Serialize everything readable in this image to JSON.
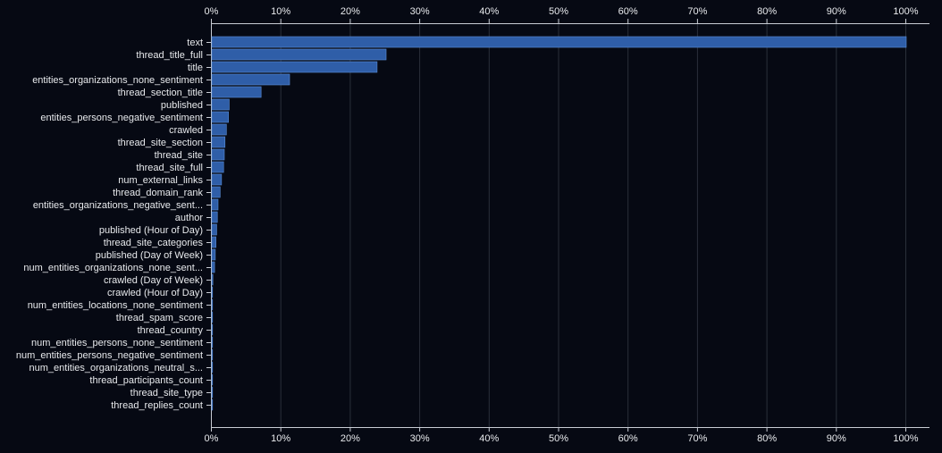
{
  "colors": {
    "background": "#060913",
    "bar": "#2f5ea8",
    "grid": "#2a2f3a",
    "text": "#e8eaed"
  },
  "chart_data": {
    "type": "bar",
    "orientation": "horizontal",
    "categories": [
      "text",
      "thread_title_full",
      "title",
      "entities_organizations_none_sentiment",
      "thread_section_title",
      "published",
      "entities_persons_negative_sentiment",
      "crawled",
      "thread_site_section",
      "thread_site",
      "thread_site_full",
      "num_external_links",
      "thread_domain_rank",
      "entities_organizations_negative_sent...",
      "author",
      "published (Hour of Day)",
      "thread_site_categories",
      "published (Day of Week)",
      "num_entities_organizations_none_sent...",
      "crawled (Day of Week)",
      "crawled (Hour of Day)",
      "num_entities_locations_none_sentiment",
      "thread_spam_score",
      "thread_country",
      "num_entities_persons_none_sentiment",
      "num_entities_persons_negative_sentiment",
      "num_entities_organizations_neutral_s...",
      "thread_participants_count",
      "thread_site_type",
      "thread_replies_count"
    ],
    "values": [
      100,
      25.1,
      23.8,
      11.2,
      7.1,
      2.5,
      2.4,
      2.1,
      1.9,
      1.8,
      1.7,
      1.4,
      1.2,
      0.9,
      0.8,
      0.7,
      0.6,
      0.5,
      0.4,
      0.15,
      0.1,
      0.05,
      0.04,
      0.03,
      0.02,
      0.02,
      0.01,
      0.01,
      0.01,
      0.01
    ],
    "xlim": [
      0,
      100
    ],
    "x_ticks": [
      "0%",
      "10%",
      "20%",
      "30%",
      "40%",
      "50%",
      "60%",
      "70%",
      "80%",
      "90%",
      "100%"
    ],
    "x_tick_values": [
      0,
      10,
      20,
      30,
      40,
      50,
      60,
      70,
      80,
      90,
      100
    ],
    "x_axis_position": "top and bottom",
    "grid": true,
    "title": "",
    "xlabel": "",
    "ylabel": ""
  }
}
